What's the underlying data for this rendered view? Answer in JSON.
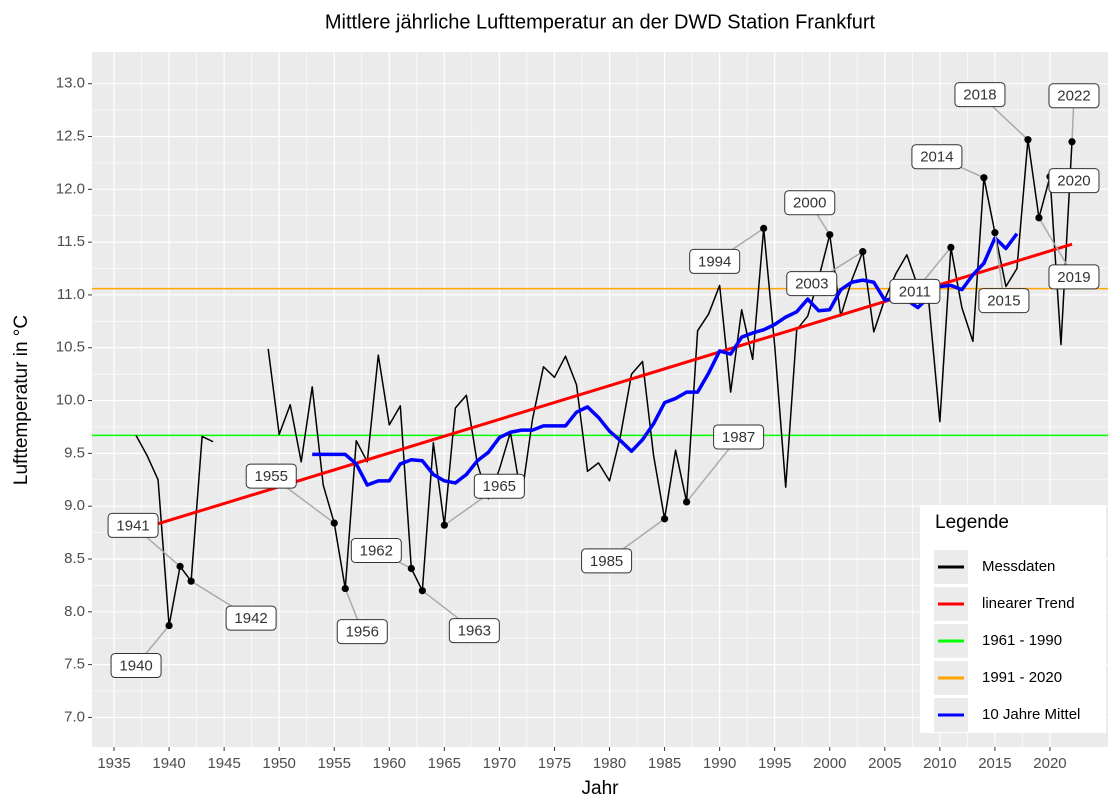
{
  "chart_data": {
    "type": "line",
    "title": "Mittlere jährliche Lufttemperatur an der DWD Station Frankfurt",
    "xlabel": "Jahr",
    "ylabel": "Lufttemperatur in °C",
    "legend_title": "Legende",
    "legend_position": "bottom-right",
    "grid": true,
    "xlim": [
      1933,
      2025.27
    ],
    "ylim": [
      6.72,
      13.3
    ],
    "xticks": [
      1935,
      1940,
      1945,
      1950,
      1955,
      1960,
      1965,
      1970,
      1975,
      1980,
      1985,
      1990,
      1995,
      2000,
      2005,
      2010,
      2015,
      2020
    ],
    "yticks": [
      {
        "value": 7,
        "label": "7.0"
      },
      7.5,
      {
        "value": 8,
        "label": "8.0"
      },
      8.5,
      {
        "value": 9,
        "label": "9.0"
      },
      9.5,
      {
        "value": 10,
        "label": "10.0"
      },
      10.5,
      {
        "value": 11,
        "label": "11.0"
      },
      11.5,
      {
        "value": 12,
        "label": "12.0"
      },
      12.5,
      {
        "value": 13,
        "label": "13.0"
      }
    ],
    "series": [
      {
        "name": "Messdaten",
        "color": "#000000",
        "kind": "line",
        "x": [
          1937,
          1938,
          1939,
          1940,
          1941,
          1942,
          1943,
          1944,
          1945,
          1946,
          1947,
          1948,
          1949,
          1950,
          1951,
          1952,
          1953,
          1954,
          1955,
          1956,
          1957,
          1958,
          1959,
          1960,
          1961,
          1962,
          1963,
          1964,
          1965,
          1966,
          1967,
          1968,
          1969,
          1970,
          1971,
          1972,
          1973,
          1974,
          1975,
          1976,
          1977,
          1978,
          1979,
          1980,
          1981,
          1982,
          1983,
          1984,
          1985,
          1986,
          1987,
          1988,
          1989,
          1990,
          1991,
          1992,
          1993,
          1994,
          1995,
          1996,
          1997,
          1998,
          1999,
          2000,
          2001,
          2002,
          2003,
          2004,
          2005,
          2006,
          2007,
          2008,
          2009,
          2010,
          2011,
          2012,
          2013,
          2014,
          2015,
          2016,
          2017,
          2018,
          2019,
          2020,
          2021,
          2022
        ],
        "values": [
          9.67,
          9.48,
          9.25,
          7.87,
          8.43,
          8.29,
          9.66,
          9.61,
          null,
          null,
          null,
          null,
          10.49,
          9.68,
          9.96,
          9.42,
          10.13,
          9.2,
          8.84,
          8.22,
          9.62,
          9.42,
          10.43,
          9.77,
          9.95,
          8.41,
          8.2,
          9.6,
          8.82,
          9.93,
          10.05,
          9.4,
          9.07,
          9.35,
          9.7,
          9.08,
          9.82,
          10.32,
          10.22,
          10.42,
          10.15,
          9.33,
          9.41,
          9.24,
          9.67,
          10.25,
          10.37,
          9.48,
          8.88,
          9.53,
          9.04,
          10.66,
          10.82,
          11.09,
          10.08,
          10.86,
          10.39,
          11.63,
          10.52,
          9.18,
          10.67,
          10.8,
          11.16,
          11.57,
          10.8,
          11.14,
          11.41,
          10.65,
          10.96,
          11.2,
          11.38,
          11.08,
          10.93,
          9.8,
          11.45,
          10.88,
          10.56,
          12.11,
          11.59,
          11.08,
          11.25,
          12.47,
          11.73,
          12.12,
          10.53,
          12.45
        ]
      },
      {
        "name": "linearer Trend",
        "color": "#ff0000",
        "kind": "line",
        "x": [
          1937,
          2022
        ],
        "values": [
          8.77,
          11.48
        ]
      },
      {
        "name": "1961 - 1990",
        "color": "#00ff00",
        "kind": "hline",
        "values": [
          9.67
        ]
      },
      {
        "name": "1991 - 2020",
        "color": "#ffa500",
        "kind": "hline",
        "values": [
          11.06
        ]
      },
      {
        "name": "10 Jahre Mittel",
        "color": "#0000ff",
        "kind": "line",
        "x": [
          1953,
          1954,
          1955,
          1956,
          1957,
          1958,
          1959,
          1960,
          1961,
          1962,
          1963,
          1964,
          1965,
          1966,
          1967,
          1968,
          1969,
          1970,
          1971,
          1972,
          1973,
          1974,
          1975,
          1976,
          1977,
          1978,
          1979,
          1980,
          1981,
          1982,
          1983,
          1984,
          1985,
          1986,
          1987,
          1988,
          1989,
          1990,
          1991,
          1992,
          1993,
          1994,
          1995,
          1996,
          1997,
          1998,
          1999,
          2000,
          2001,
          2002,
          2003,
          2004,
          2005,
          2006,
          2007,
          2008,
          2009,
          2010,
          2011,
          2012,
          2013,
          2014,
          2015,
          2016,
          2017
        ],
        "values": [
          9.49,
          9.49,
          9.49,
          9.49,
          9.4,
          9.2,
          9.24,
          9.24,
          9.4,
          9.44,
          9.43,
          9.3,
          9.24,
          9.22,
          9.3,
          9.43,
          9.51,
          9.65,
          9.7,
          9.72,
          9.72,
          9.76,
          9.76,
          9.76,
          9.89,
          9.94,
          9.84,
          9.71,
          9.62,
          9.52,
          9.63,
          9.78,
          9.98,
          10.02,
          10.08,
          10.08,
          10.26,
          10.47,
          10.44,
          10.6,
          10.64,
          10.67,
          10.72,
          10.79,
          10.84,
          10.96,
          10.85,
          10.86,
          11.05,
          11.12,
          11.14,
          11.12,
          10.95,
          10.97,
          10.95,
          10.88,
          10.98,
          11.08,
          11.09,
          11.05,
          11.19,
          11.3,
          11.54,
          11.44,
          11.58
        ]
      }
    ],
    "highlighted": [
      1940,
      1941,
      1942,
      1955,
      1956,
      1962,
      1963,
      1965,
      1985,
      1987,
      1994,
      2000,
      2003,
      2011,
      2014,
      2015,
      2018,
      2019,
      2020,
      2022
    ]
  }
}
